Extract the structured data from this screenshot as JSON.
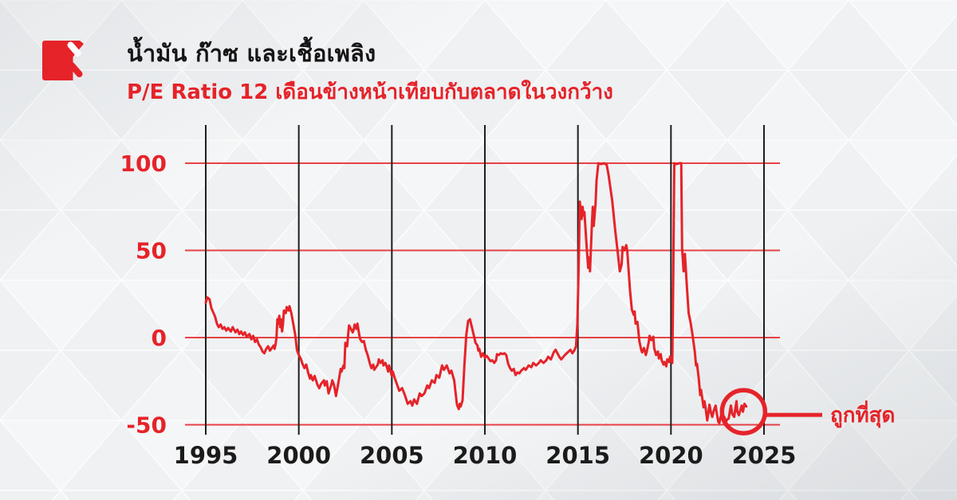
{
  "header": {
    "title": "น้ำมัน ก๊าซ และเชื้อเพลิง",
    "subtitle": "P/E Ratio 12 เดือนข้างหน้าเทียบกับตลาดในวงกว้าง",
    "title_color": "#151515",
    "subtitle_color": "#e52329"
  },
  "brand": {
    "logo_color": "#e52329"
  },
  "chart_data": {
    "type": "line",
    "title": "P/E Ratio 12 เดือนข้างหน้าเทียบกับตลาดในวงกว้าง",
    "xlabel": "",
    "ylabel": "",
    "x_ticks": [
      1995,
      2000,
      2005,
      2010,
      2015,
      2020,
      2025
    ],
    "y_ticks": [
      100,
      50,
      0,
      -50
    ],
    "xlim": [
      1994.6,
      2025.9
    ],
    "ylim": [
      -55,
      108
    ],
    "grid": "on",
    "legend": "none",
    "line_color": "#e52329",
    "h_gridline_color": "#e52329",
    "v_gridline_color": "#1f1f1f",
    "annotation": {
      "label": "ถูกที่สุด",
      "year": 2023.9,
      "value": -42.5,
      "circle_radius_px": 27,
      "color": "#e52329"
    },
    "points": [
      [
        1995.0,
        20
      ],
      [
        1995.08,
        23
      ],
      [
        1995.2,
        22
      ],
      [
        1995.3,
        17
      ],
      [
        1995.5,
        12
      ],
      [
        1995.6,
        8
      ],
      [
        1995.7,
        6
      ],
      [
        1995.8,
        7.5
      ],
      [
        1995.9,
        5
      ],
      [
        1996.0,
        6
      ],
      [
        1996.1,
        4
      ],
      [
        1996.2,
        5.5
      ],
      [
        1996.35,
        3.5
      ],
      [
        1996.45,
        6
      ],
      [
        1996.6,
        3
      ],
      [
        1996.7,
        4.5
      ],
      [
        1996.8,
        2
      ],
      [
        1996.9,
        3.5
      ],
      [
        1997.0,
        1.5
      ],
      [
        1997.1,
        3
      ],
      [
        1997.2,
        0.5
      ],
      [
        1997.35,
        2
      ],
      [
        1997.45,
        -1
      ],
      [
        1997.55,
        1
      ],
      [
        1997.65,
        -2.5
      ],
      [
        1997.75,
        -1
      ],
      [
        1997.85,
        -4
      ],
      [
        1997.95,
        -5.5
      ],
      [
        1998.05,
        -8
      ],
      [
        1998.15,
        -9
      ],
      [
        1998.25,
        -6.5
      ],
      [
        1998.35,
        -5
      ],
      [
        1998.45,
        -7.5
      ],
      [
        1998.55,
        -6
      ],
      [
        1998.65,
        -4.5
      ],
      [
        1998.7,
        -6.5
      ],
      [
        1998.75,
        -4
      ],
      [
        1998.8,
        0
      ],
      [
        1998.85,
        10.5
      ],
      [
        1998.9,
        8
      ],
      [
        1998.95,
        12.5
      ],
      [
        1999.0,
        6
      ],
      [
        1999.05,
        10.5
      ],
      [
        1999.1,
        3.5
      ],
      [
        1999.15,
        7.5
      ],
      [
        1999.2,
        15.5
      ],
      [
        1999.3,
        14
      ],
      [
        1999.35,
        17.5
      ],
      [
        1999.45,
        15.5
      ],
      [
        1999.5,
        18
      ],
      [
        1999.6,
        14
      ],
      [
        1999.7,
        8
      ],
      [
        1999.8,
        2
      ],
      [
        1999.85,
        -2.5
      ],
      [
        1999.9,
        -7
      ],
      [
        2000.0,
        -10
      ],
      [
        2000.1,
        -12
      ],
      [
        2000.2,
        -15
      ],
      [
        2000.3,
        -17.5
      ],
      [
        2000.4,
        -15.5
      ],
      [
        2000.5,
        -20
      ],
      [
        2000.6,
        -23.5
      ],
      [
        2000.65,
        -21.5
      ],
      [
        2000.75,
        -24.5
      ],
      [
        2000.85,
        -22
      ],
      [
        2001.0,
        -27
      ],
      [
        2001.1,
        -29
      ],
      [
        2001.2,
        -26.5
      ],
      [
        2001.35,
        -24.5
      ],
      [
        2001.4,
        -27.5
      ],
      [
        2001.5,
        -25
      ],
      [
        2001.6,
        -32
      ],
      [
        2001.75,
        -27
      ],
      [
        2001.8,
        -24.5
      ],
      [
        2001.9,
        -27.5
      ],
      [
        2002.0,
        -33.5
      ],
      [
        2002.05,
        -30.5
      ],
      [
        2002.15,
        -24.5
      ],
      [
        2002.25,
        -18
      ],
      [
        2002.3,
        -19.5
      ],
      [
        2002.4,
        -16
      ],
      [
        2002.45,
        -17.5
      ],
      [
        2002.5,
        -3
      ],
      [
        2002.6,
        -5
      ],
      [
        2002.65,
        1.5
      ],
      [
        2002.7,
        7
      ],
      [
        2002.8,
        5
      ],
      [
        2002.9,
        3
      ],
      [
        2002.95,
        4.5
      ],
      [
        2003.0,
        7.5
      ],
      [
        2003.1,
        5
      ],
      [
        2003.15,
        8
      ],
      [
        2003.25,
        1.5
      ],
      [
        2003.3,
        -1
      ],
      [
        2003.4,
        -2.5
      ],
      [
        2003.5,
        -2
      ],
      [
        2003.55,
        -4.5
      ],
      [
        2003.6,
        -7
      ],
      [
        2003.7,
        -10
      ],
      [
        2003.8,
        -14
      ],
      [
        2003.85,
        -16
      ],
      [
        2003.9,
        -17.5
      ],
      [
        2004.0,
        -15.5
      ],
      [
        2004.05,
        -18.5
      ],
      [
        2004.15,
        -17
      ],
      [
        2004.25,
        -15.5
      ],
      [
        2004.3,
        -12.5
      ],
      [
        2004.4,
        -14.5
      ],
      [
        2004.5,
        -13
      ],
      [
        2004.55,
        -16
      ],
      [
        2004.65,
        -14.5
      ],
      [
        2004.75,
        -17.5
      ],
      [
        2004.8,
        -19.5
      ],
      [
        2004.85,
        -16
      ],
      [
        2004.95,
        -20
      ],
      [
        2005.0,
        -22
      ],
      [
        2005.05,
        -19.5
      ],
      [
        2005.15,
        -23
      ],
      [
        2005.3,
        -27.5
      ],
      [
        2005.4,
        -30.5
      ],
      [
        2005.55,
        -29
      ],
      [
        2005.7,
        -33
      ],
      [
        2005.85,
        -38
      ],
      [
        2006.0,
        -36.5
      ],
      [
        2006.1,
        -39
      ],
      [
        2006.2,
        -35.5
      ],
      [
        2006.35,
        -38
      ],
      [
        2006.5,
        -32
      ],
      [
        2006.6,
        -33.5
      ],
      [
        2006.75,
        -32
      ],
      [
        2006.9,
        -27.5
      ],
      [
        2007.0,
        -29
      ],
      [
        2007.15,
        -24.5
      ],
      [
        2007.3,
        -26
      ],
      [
        2007.4,
        -21.5
      ],
      [
        2007.55,
        -23
      ],
      [
        2007.7,
        -16
      ],
      [
        2007.8,
        -18.5
      ],
      [
        2007.95,
        -16
      ],
      [
        2008.1,
        -20.5
      ],
      [
        2008.2,
        -19
      ],
      [
        2008.35,
        -24.5
      ],
      [
        2008.5,
        -38.5
      ],
      [
        2008.6,
        -41
      ],
      [
        2008.65,
        -38
      ],
      [
        2008.7,
        -39.5
      ],
      [
        2008.8,
        -36
      ],
      [
        2008.9,
        -16
      ],
      [
        2009.0,
        1.5
      ],
      [
        2009.1,
        9.5
      ],
      [
        2009.2,
        10.5
      ],
      [
        2009.3,
        6
      ],
      [
        2009.4,
        1.5
      ],
      [
        2009.5,
        -3
      ],
      [
        2009.6,
        -4.5
      ],
      [
        2009.65,
        -7.5
      ],
      [
        2009.7,
        -6.5
      ],
      [
        2009.8,
        -11
      ],
      [
        2009.9,
        -9
      ],
      [
        2010.0,
        -11.5
      ],
      [
        2010.1,
        -10.5
      ],
      [
        2010.2,
        -12
      ],
      [
        2010.3,
        -13.5
      ],
      [
        2010.4,
        -13
      ],
      [
        2010.5,
        -14.5
      ],
      [
        2010.6,
        -13
      ],
      [
        2010.65,
        -9.5
      ],
      [
        2010.75,
        -10
      ],
      [
        2010.85,
        -9
      ],
      [
        2010.95,
        -9.5
      ],
      [
        2011.05,
        -9
      ],
      [
        2011.15,
        -10
      ],
      [
        2011.25,
        -15
      ],
      [
        2011.35,
        -17.5
      ],
      [
        2011.45,
        -19
      ],
      [
        2011.55,
        -18
      ],
      [
        2011.65,
        -21.5
      ],
      [
        2011.75,
        -20
      ],
      [
        2011.85,
        -20.5
      ],
      [
        2011.95,
        -19
      ],
      [
        2012.1,
        -17.5
      ],
      [
        2012.2,
        -18.5
      ],
      [
        2012.35,
        -16
      ],
      [
        2012.5,
        -17
      ],
      [
        2012.6,
        -14.5
      ],
      [
        2012.75,
        -16
      ],
      [
        2012.9,
        -14.5
      ],
      [
        2013.0,
        -13
      ],
      [
        2013.15,
        -14.5
      ],
      [
        2013.3,
        -13
      ],
      [
        2013.4,
        -11
      ],
      [
        2013.55,
        -12.5
      ],
      [
        2013.7,
        -8.5
      ],
      [
        2013.8,
        -7
      ],
      [
        2013.9,
        -9
      ],
      [
        2014.0,
        -11
      ],
      [
        2014.1,
        -12.5
      ],
      [
        2014.3,
        -10
      ],
      [
        2014.45,
        -8.5
      ],
      [
        2014.6,
        -7
      ],
      [
        2014.7,
        -9
      ],
      [
        2014.8,
        -7.5
      ],
      [
        2014.9,
        -5
      ],
      [
        2014.97,
        8
      ],
      [
        2015.05,
        45
      ],
      [
        2015.1,
        78
      ],
      [
        2015.2,
        68
      ],
      [
        2015.25,
        75
      ],
      [
        2015.3,
        70
      ],
      [
        2015.35,
        72
      ],
      [
        2015.45,
        55
      ],
      [
        2015.55,
        40
      ],
      [
        2015.6,
        46
      ],
      [
        2015.65,
        38
      ],
      [
        2015.75,
        65
      ],
      [
        2015.8,
        75
      ],
      [
        2015.85,
        64
      ],
      [
        2015.95,
        77
      ],
      [
        2016.0,
        90
      ],
      [
        2016.1,
        100
      ],
      [
        2016.25,
        99.5
      ],
      [
        2016.4,
        100
      ],
      [
        2016.55,
        99
      ],
      [
        2016.65,
        93
      ],
      [
        2016.85,
        78
      ],
      [
        2017.0,
        62
      ],
      [
        2017.15,
        48
      ],
      [
        2017.25,
        38
      ],
      [
        2017.35,
        42
      ],
      [
        2017.4,
        52
      ],
      [
        2017.5,
        50
      ],
      [
        2017.6,
        53
      ],
      [
        2017.65,
        50
      ],
      [
        2017.7,
        42
      ],
      [
        2017.8,
        27
      ],
      [
        2017.9,
        16
      ],
      [
        2018.0,
        13
      ],
      [
        2018.05,
        15
      ],
      [
        2018.1,
        8
      ],
      [
        2018.2,
        9
      ],
      [
        2018.3,
        -2
      ],
      [
        2018.4,
        -7
      ],
      [
        2018.45,
        -8.5
      ],
      [
        2018.55,
        -6
      ],
      [
        2018.65,
        -10
      ],
      [
        2018.7,
        -8
      ],
      [
        2018.8,
        -3
      ],
      [
        2018.85,
        1
      ],
      [
        2018.95,
        -1.5
      ],
      [
        2019.05,
        0.5
      ],
      [
        2019.1,
        -6
      ],
      [
        2019.2,
        -10
      ],
      [
        2019.3,
        -8
      ],
      [
        2019.35,
        -12
      ],
      [
        2019.45,
        -9.5
      ],
      [
        2019.5,
        -13
      ],
      [
        2019.6,
        -15.5
      ],
      [
        2019.65,
        -14
      ],
      [
        2019.75,
        -16.5
      ],
      [
        2019.8,
        -12.5
      ],
      [
        2019.9,
        -14
      ],
      [
        2019.95,
        -11
      ],
      [
        2020.0,
        -12.5
      ],
      [
        2020.07,
        -14.5
      ],
      [
        2020.12,
        30
      ],
      [
        2020.18,
        100
      ],
      [
        2020.3,
        99.5
      ],
      [
        2020.45,
        100
      ],
      [
        2020.55,
        100
      ],
      [
        2020.6,
        51
      ],
      [
        2020.68,
        38
      ],
      [
        2020.75,
        48
      ],
      [
        2020.85,
        30
      ],
      [
        2020.95,
        14
      ],
      [
        2021.05,
        9
      ],
      [
        2021.15,
        2
      ],
      [
        2021.28,
        -8
      ],
      [
        2021.35,
        -16
      ],
      [
        2021.4,
        -15
      ],
      [
        2021.5,
        -24
      ],
      [
        2021.57,
        -33
      ],
      [
        2021.62,
        -30
      ],
      [
        2021.75,
        -40
      ],
      [
        2021.8,
        -36.5
      ],
      [
        2021.87,
        -41
      ],
      [
        2021.95,
        -47.5
      ],
      [
        2022.0,
        -44
      ],
      [
        2022.07,
        -38.5
      ],
      [
        2022.15,
        -43
      ],
      [
        2022.22,
        -45.5
      ],
      [
        2022.3,
        -42
      ],
      [
        2022.4,
        -39
      ],
      [
        2022.47,
        -44
      ],
      [
        2022.55,
        -48.5
      ],
      [
        2022.6,
        -49
      ],
      [
        2022.67,
        -45.5
      ],
      [
        2022.72,
        -44
      ],
      [
        2022.8,
        -47.5
      ],
      [
        2022.87,
        -45.5
      ],
      [
        2022.95,
        -48.5
      ],
      [
        2023.02,
        -47
      ],
      [
        2023.1,
        -46.5
      ],
      [
        2023.17,
        -42
      ],
      [
        2023.22,
        -39
      ],
      [
        2023.3,
        -44
      ],
      [
        2023.4,
        -45.5
      ],
      [
        2023.47,
        -40
      ],
      [
        2023.52,
        -36.5
      ],
      [
        2023.57,
        -42.5
      ],
      [
        2023.65,
        -44.5
      ],
      [
        2023.72,
        -42
      ],
      [
        2023.8,
        -39
      ],
      [
        2023.87,
        -42.5
      ],
      [
        2023.95,
        -38
      ],
      [
        2024.05,
        -39.5
      ]
    ]
  }
}
